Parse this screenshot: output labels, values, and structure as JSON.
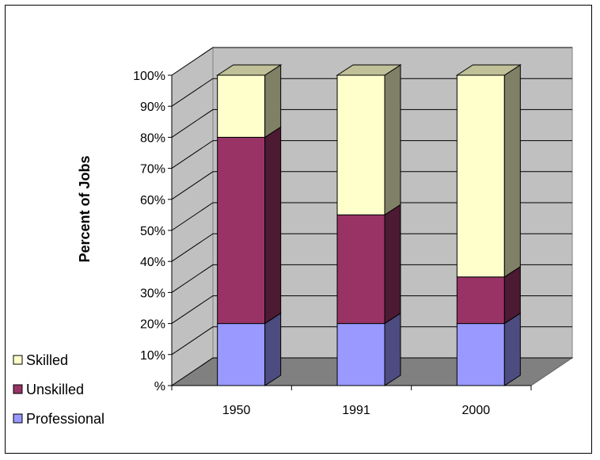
{
  "chart_data": {
    "type": "bar",
    "stacked": true,
    "percent_stacked": true,
    "three_d": true,
    "categories": [
      "1950",
      "1991",
      "2000"
    ],
    "series": [
      {
        "name": "Professional",
        "values": [
          20,
          20,
          20
        ],
        "color": "#9999ff",
        "side_color": "#4c4c80"
      },
      {
        "name": "Unskilled",
        "values": [
          60,
          35,
          15
        ],
        "color": "#993366",
        "side_color": "#4c1a33"
      },
      {
        "name": "Skilled",
        "values": [
          20,
          45,
          65
        ],
        "color": "#ffffcc",
        "side_color": "#808066"
      }
    ],
    "ylabel": "Percent of Jobs",
    "ylim": [
      0,
      100
    ],
    "yticks": [
      "%",
      "10%",
      "20%",
      "30%",
      "40%",
      "50%",
      "60%",
      "70%",
      "80%",
      "90%",
      "100%"
    ],
    "grid": true,
    "legend": {
      "position": "bottom-left",
      "entries": [
        "Skilled",
        "Unskilled",
        "Professional"
      ]
    },
    "colors": {
      "wall": "#c0c0c0",
      "floor": "#808080",
      "gridline": "#000000"
    }
  }
}
